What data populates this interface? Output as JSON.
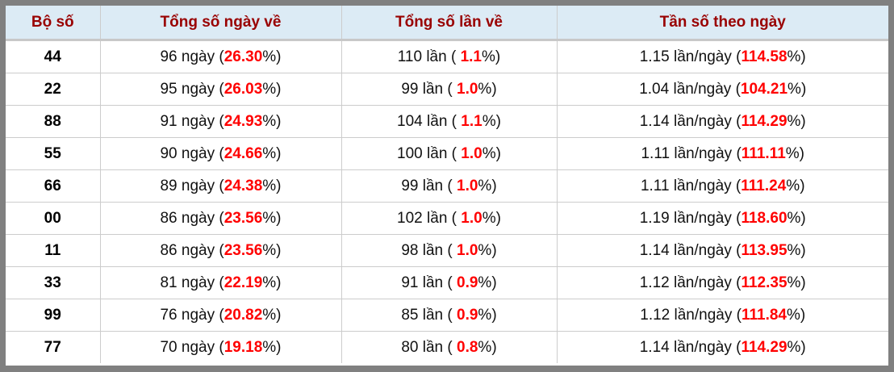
{
  "headers": [
    "Bộ số",
    "Tổng số ngày về",
    "Tổng số lần về",
    "Tần số theo ngày"
  ],
  "colors": {
    "header_text": "#990000",
    "header_bg": "#dcebf5",
    "highlight": "#ff0000",
    "frame": "#808080"
  },
  "rows": [
    {
      "bo_so": "44",
      "ngay": "96",
      "ngay_pct": "26.30",
      "lan": "110",
      "lan_pct": "1.1",
      "tan_so": "1.15",
      "tan_so_pct": "114.58"
    },
    {
      "bo_so": "22",
      "ngay": "95",
      "ngay_pct": "26.03",
      "lan": "99",
      "lan_pct": "1.0",
      "tan_so": "1.04",
      "tan_so_pct": "104.21"
    },
    {
      "bo_so": "88",
      "ngay": "91",
      "ngay_pct": "24.93",
      "lan": "104",
      "lan_pct": "1.1",
      "tan_so": "1.14",
      "tan_so_pct": "114.29"
    },
    {
      "bo_so": "55",
      "ngay": "90",
      "ngay_pct": "24.66",
      "lan": "100",
      "lan_pct": "1.0",
      "tan_so": "1.11",
      "tan_so_pct": "111.11"
    },
    {
      "bo_so": "66",
      "ngay": "89",
      "ngay_pct": "24.38",
      "lan": "99",
      "lan_pct": "1.0",
      "tan_so": "1.11",
      "tan_so_pct": "111.24"
    },
    {
      "bo_so": "00",
      "ngay": "86",
      "ngay_pct": "23.56",
      "lan": "102",
      "lan_pct": "1.0",
      "tan_so": "1.19",
      "tan_so_pct": "118.60"
    },
    {
      "bo_so": "11",
      "ngay": "86",
      "ngay_pct": "23.56",
      "lan": "98",
      "lan_pct": "1.0",
      "tan_so": "1.14",
      "tan_so_pct": "113.95"
    },
    {
      "bo_so": "33",
      "ngay": "81",
      "ngay_pct": "22.19",
      "lan": "91",
      "lan_pct": "0.9",
      "tan_so": "1.12",
      "tan_so_pct": "112.35"
    },
    {
      "bo_so": "99",
      "ngay": "76",
      "ngay_pct": "20.82",
      "lan": "85",
      "lan_pct": "0.9",
      "tan_so": "1.12",
      "tan_so_pct": "111.84"
    },
    {
      "bo_so": "77",
      "ngay": "70",
      "ngay_pct": "19.18",
      "lan": "80",
      "lan_pct": "0.8",
      "tan_so": "1.14",
      "tan_so_pct": "114.29"
    }
  ],
  "units": {
    "ngay": "ngày",
    "lan": "lần",
    "tan_so": "lần/ngày"
  }
}
